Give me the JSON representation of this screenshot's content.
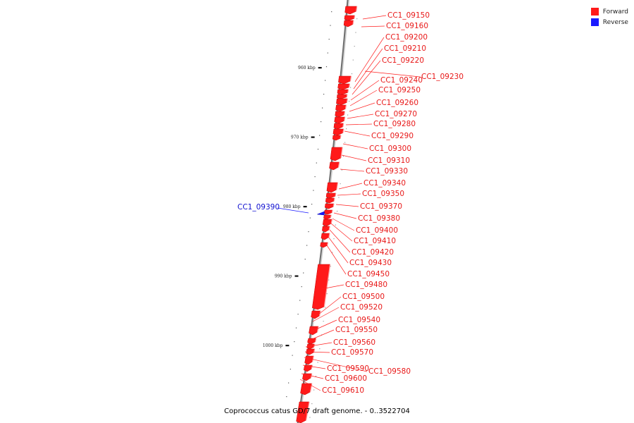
{
  "caption": "Coprococcus catus GD/7 draft genome. - 0..3522704",
  "legend": [
    {
      "label": "Forward",
      "color": "#ff1a1a"
    },
    {
      "label": "Reverse",
      "color": "#1a1aff"
    }
  ],
  "axis_ticks": [
    {
      "label": "960 kbp",
      "pos": 960
    },
    {
      "label": "970 kbp",
      "pos": 970
    },
    {
      "label": "980 kbp",
      "pos": 980
    },
    {
      "label": "990 kbp",
      "pos": 990
    },
    {
      "label": "1000 kbp",
      "pos": 1000
    }
  ],
  "genes": [
    {
      "name": "CC1_09150",
      "strand": "forward"
    },
    {
      "name": "CC1_09160",
      "strand": "forward"
    },
    {
      "name": "CC1_09200",
      "strand": "forward"
    },
    {
      "name": "CC1_09210",
      "strand": "forward"
    },
    {
      "name": "CC1_09220",
      "strand": "forward"
    },
    {
      "name": "CC1_09230",
      "strand": "forward"
    },
    {
      "name": "CC1_09240",
      "strand": "forward"
    },
    {
      "name": "CC1_09250",
      "strand": "forward"
    },
    {
      "name": "CC1_09260",
      "strand": "forward"
    },
    {
      "name": "CC1_09270",
      "strand": "forward"
    },
    {
      "name": "CC1_09280",
      "strand": "forward"
    },
    {
      "name": "CC1_09290",
      "strand": "forward"
    },
    {
      "name": "CC1_09300",
      "strand": "forward"
    },
    {
      "name": "CC1_09310",
      "strand": "forward"
    },
    {
      "name": "CC1_09330",
      "strand": "forward"
    },
    {
      "name": "CC1_09340",
      "strand": "forward"
    },
    {
      "name": "CC1_09350",
      "strand": "forward"
    },
    {
      "name": "CC1_09370",
      "strand": "forward"
    },
    {
      "name": "CC1_09380",
      "strand": "forward"
    },
    {
      "name": "CC1_09390",
      "strand": "reverse"
    },
    {
      "name": "CC1_09400",
      "strand": "forward"
    },
    {
      "name": "CC1_09410",
      "strand": "forward"
    },
    {
      "name": "CC1_09420",
      "strand": "forward"
    },
    {
      "name": "CC1_09430",
      "strand": "forward"
    },
    {
      "name": "CC1_09450",
      "strand": "forward"
    },
    {
      "name": "CC1_09480",
      "strand": "forward"
    },
    {
      "name": "CC1_09500",
      "strand": "forward"
    },
    {
      "name": "CC1_09520",
      "strand": "forward"
    },
    {
      "name": "CC1_09540",
      "strand": "forward"
    },
    {
      "name": "CC1_09550",
      "strand": "forward"
    },
    {
      "name": "CC1_09560",
      "strand": "forward"
    },
    {
      "name": "CC1_09570",
      "strand": "forward"
    },
    {
      "name": "CC1_09580",
      "strand": "forward"
    },
    {
      "name": "CC1_09590",
      "strand": "forward"
    },
    {
      "name": "CC1_09600",
      "strand": "forward"
    },
    {
      "name": "CC1_09610",
      "strand": "forward"
    }
  ]
}
